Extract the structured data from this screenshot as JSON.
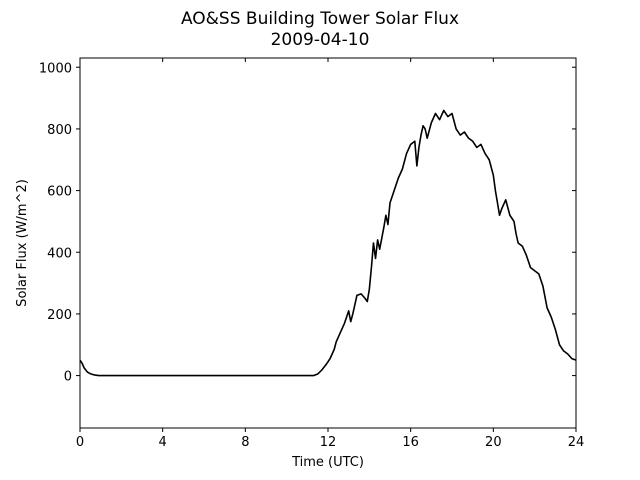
{
  "chart_data": {
    "type": "line",
    "title": "AO&SS Building Tower Solar Flux",
    "subtitle": "2009-04-10",
    "xlabel": "Time (UTC)",
    "ylabel": "Solar Flux (W/m^2)",
    "xlim": [
      0,
      24
    ],
    "ylim": [
      -170,
      1030
    ],
    "xticks": [
      0,
      4,
      8,
      12,
      16,
      20,
      24
    ],
    "yticks": [
      0,
      200,
      400,
      600,
      800,
      1000
    ],
    "grid": false,
    "line_color": "#000000",
    "series": [
      {
        "x": [
          0.0,
          0.1,
          0.2,
          0.35,
          0.5,
          0.7,
          0.9,
          1.2,
          2.0,
          4.0,
          6.0,
          8.0,
          10.0,
          11.0,
          11.3,
          11.5,
          11.7,
          11.9,
          12.1,
          12.3,
          12.4,
          12.6,
          12.8,
          13.0,
          13.1,
          13.2,
          13.4,
          13.6,
          13.8,
          13.9,
          14.0,
          14.1,
          14.2,
          14.3,
          14.4,
          14.5,
          14.7,
          14.8,
          14.9,
          15.0,
          15.2,
          15.4,
          15.6,
          15.8,
          16.0,
          16.2,
          16.3,
          16.4,
          16.5,
          16.6,
          16.7,
          16.8,
          17.0,
          17.2,
          17.4,
          17.6,
          17.8,
          18.0,
          18.2,
          18.4,
          18.6,
          18.8,
          19.0,
          19.2,
          19.4,
          19.6,
          19.8,
          20.0,
          20.1,
          20.2,
          20.3,
          20.4,
          20.6,
          20.8,
          21.0,
          21.1,
          21.2,
          21.4,
          21.6,
          21.8,
          22.0,
          22.2,
          22.4,
          22.6,
          22.8,
          23.0,
          23.2,
          23.4,
          23.6,
          23.8,
          24.0
        ],
        "y": [
          50,
          40,
          25,
          12,
          6,
          2,
          0,
          0,
          0,
          0,
          0,
          0,
          0,
          0,
          0,
          5,
          18,
          35,
          55,
          85,
          110,
          140,
          170,
          210,
          175,
          200,
          260,
          265,
          250,
          240,
          280,
          350,
          430,
          380,
          440,
          410,
          480,
          520,
          490,
          560,
          600,
          640,
          670,
          720,
          750,
          760,
          680,
          740,
          780,
          810,
          800,
          770,
          820,
          850,
          830,
          860,
          840,
          850,
          800,
          780,
          790,
          770,
          760,
          740,
          750,
          720,
          700,
          650,
          600,
          560,
          520,
          540,
          570,
          520,
          500,
          460,
          430,
          420,
          390,
          350,
          340,
          330,
          290,
          220,
          190,
          150,
          100,
          80,
          70,
          55,
          50
        ]
      }
    ]
  }
}
